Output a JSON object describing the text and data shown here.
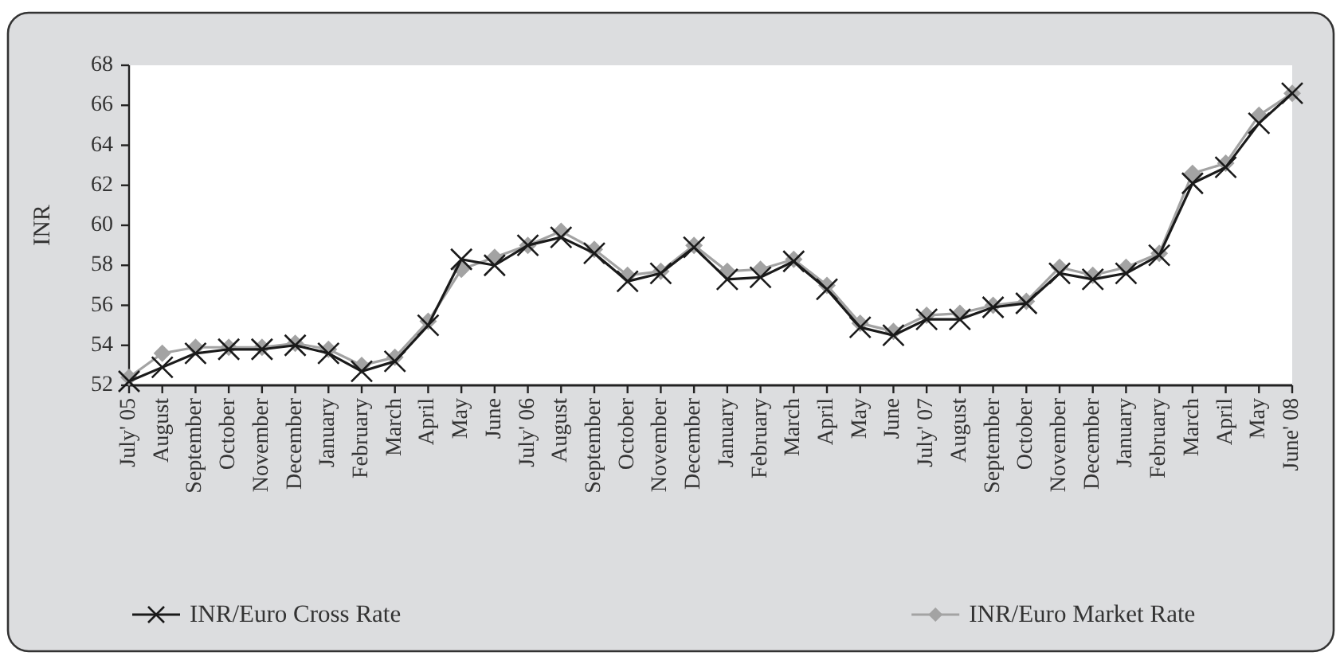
{
  "chart_data": {
    "type": "line",
    "ylabel": "INR",
    "categories": [
      "July' 05",
      "August",
      "September",
      "October",
      "November",
      "December",
      "January",
      "February",
      "March",
      "April",
      "May",
      "June",
      "July' 06",
      "August",
      "September",
      "October",
      "November",
      "December",
      "January",
      "February",
      "March",
      "April",
      "May",
      "June",
      "July' 07",
      "August",
      "September",
      "October",
      "November",
      "December",
      "January",
      "February",
      "March",
      "April",
      "May",
      "June' 08"
    ],
    "series": [
      {
        "name": "INR/Euro Cross Rate",
        "color": "#1a1a1a",
        "marker": "cross",
        "values": [
          52.2,
          52.9,
          53.6,
          53.8,
          53.8,
          54.0,
          53.6,
          52.7,
          53.2,
          55.0,
          58.3,
          58.0,
          59.0,
          59.4,
          58.6,
          57.2,
          57.6,
          58.9,
          57.3,
          57.4,
          58.2,
          56.8,
          54.9,
          54.5,
          55.3,
          55.3,
          55.9,
          56.1,
          57.6,
          57.3,
          57.6,
          58.5,
          62.1,
          62.9,
          65.1,
          66.6
        ]
      },
      {
        "name": "INR/Euro Market Rate",
        "color": "#a3a3a3",
        "marker": "diamond",
        "values": [
          52.4,
          53.6,
          53.9,
          53.9,
          53.9,
          54.1,
          53.8,
          53.0,
          53.4,
          55.2,
          57.8,
          58.4,
          59.0,
          59.7,
          58.8,
          57.5,
          57.7,
          59.0,
          57.7,
          57.8,
          58.3,
          57.0,
          55.1,
          54.7,
          55.5,
          55.6,
          56.0,
          56.2,
          57.9,
          57.5,
          57.9,
          58.6,
          62.6,
          63.1,
          65.5,
          66.6
        ]
      }
    ],
    "ylim": [
      52,
      68
    ],
    "yticks": [
      52,
      54,
      56,
      58,
      60,
      62,
      64,
      66,
      68
    ],
    "legend": "bottom"
  }
}
